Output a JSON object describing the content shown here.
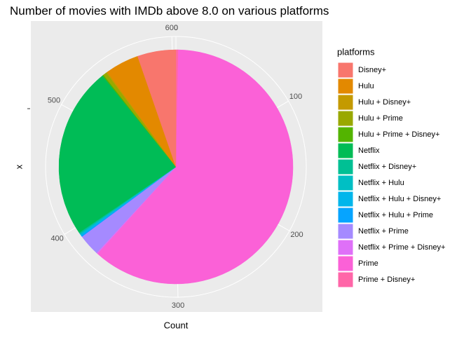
{
  "chart_data": {
    "type": "pie",
    "title": "Number of movies with IMDb above 8.0 on various platforms",
    "xlabel": "x",
    "ylabel": "Count",
    "legend_title": "platforms",
    "categories": [
      "Disney+",
      "Hulu",
      "Hulu + Disney+",
      "Hulu + Prime",
      "Hulu + Prime + Disney+",
      "Netflix",
      "Netflix + Disney+",
      "Netflix + Hulu",
      "Netflix + Hulu + Disney+",
      "Netflix + Hulu + Prime",
      "Netflix + Prime",
      "Netflix + Prime + Disney+",
      "Prime",
      "Prime + Disney+"
    ],
    "values": [
      32,
      28,
      1,
      3,
      1,
      143,
      1,
      1,
      1,
      1,
      18,
      1,
      370,
      2
    ],
    "colors": [
      "#F8766D",
      "#E38900",
      "#C49A00",
      "#99A800",
      "#53B400",
      "#00BC56",
      "#00C094",
      "#00BFC4",
      "#00B6EB",
      "#06A4FF",
      "#A58AFF",
      "#DF70F8",
      "#FB61D7",
      "#FF66A8"
    ],
    "ylim": [
      0,
      603
    ],
    "yticks": [
      0,
      100,
      200,
      300,
      400,
      500,
      600
    ],
    "grid": true
  }
}
